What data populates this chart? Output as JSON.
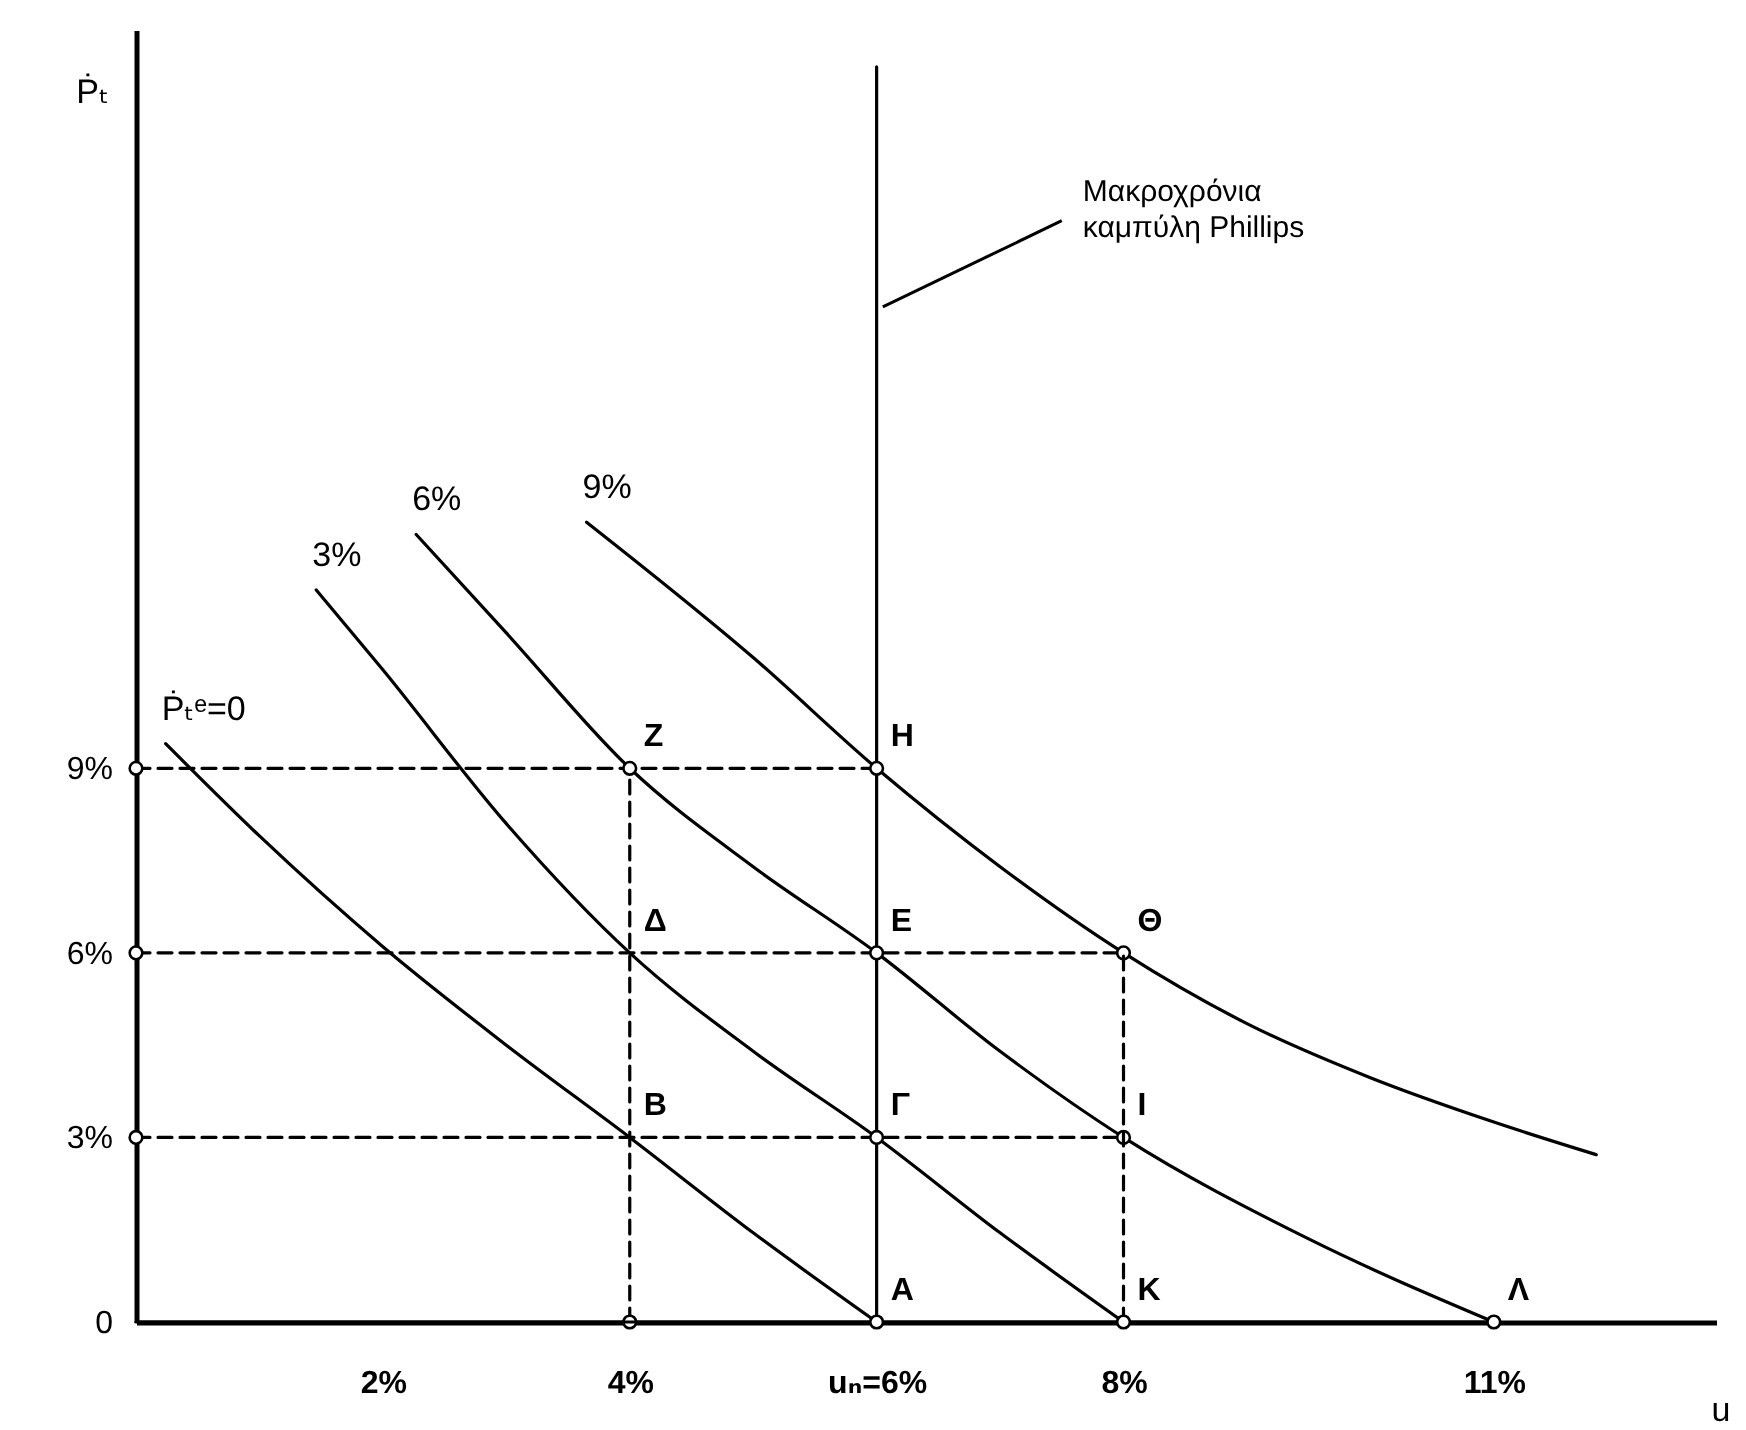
{
  "chart_data": {
    "type": "line",
    "xlabel": "u",
    "ylabel": "Ṗₜ",
    "xlim": [
      0,
      12.8
    ],
    "ylim": [
      0,
      21
    ],
    "xticks": [
      {
        "value": 2,
        "label": "2%"
      },
      {
        "value": 4,
        "label": "4%"
      },
      {
        "value": 6,
        "label": "uₙ=6%"
      },
      {
        "value": 8,
        "label": "8%"
      },
      {
        "value": 11,
        "label": "11%"
      }
    ],
    "yticks": [
      {
        "value": 0,
        "label": "0"
      },
      {
        "value": 3,
        "label": "3%"
      },
      {
        "value": 6,
        "label": "6%"
      },
      {
        "value": 9,
        "label": "9%"
      }
    ],
    "grid": false,
    "series": [
      {
        "name": "Ṗₜᵉ=0",
        "color": "#000000",
        "x": [
          0.24,
          1,
          2,
          3,
          4,
          5,
          6
        ],
        "values": [
          9.4,
          7.9,
          6.1,
          4.5,
          3,
          1.45,
          0
        ],
        "line_style": "solid",
        "marker": "none"
      },
      {
        "name": "3%",
        "color": "#000000",
        "x": [
          1.46,
          2,
          3,
          4,
          5,
          6,
          7,
          8
        ],
        "values": [
          11.9,
          10.6,
          8.1,
          6,
          4.4,
          3,
          1.45,
          0
        ],
        "line_style": "solid",
        "marker": "none"
      },
      {
        "name": "6%",
        "color": "#000000",
        "x": [
          2.27,
          3,
          4,
          5,
          6,
          7,
          8,
          9.5,
          11
        ],
        "values": [
          12.8,
          11.2,
          9,
          7.4,
          6,
          4.4,
          3,
          1.35,
          0
        ],
        "line_style": "solid",
        "marker": "none"
      },
      {
        "name": "9%",
        "color": "#000000",
        "x": [
          3.65,
          5,
          6,
          7,
          8,
          9,
          10,
          11,
          11.83
        ],
        "values": [
          13,
          10.8,
          9,
          7.4,
          6,
          4.85,
          3.97,
          3.25,
          2.72
        ],
        "line_style": "solid",
        "marker": "none"
      },
      {
        "color": "#000000",
        "x": [
          6,
          6
        ],
        "values": [
          0,
          20.4
        ],
        "line_style": "solid",
        "marker": "none"
      },
      {
        "color": "#000000",
        "x": [
          0,
          6
        ],
        "values": [
          9,
          9
        ],
        "line_style": "dashed",
        "marker": "circle"
      },
      {
        "color": "#000000",
        "x": [
          0,
          8
        ],
        "values": [
          6,
          6
        ],
        "line_style": "dashed",
        "marker": "circle"
      },
      {
        "color": "#000000",
        "x": [
          0,
          8
        ],
        "values": [
          3,
          3
        ],
        "line_style": "dashed",
        "marker": "circle"
      },
      {
        "color": "#000000",
        "x": [
          4,
          4
        ],
        "values": [
          0,
          9
        ],
        "line_style": "dashed",
        "marker": "circle"
      },
      {
        "color": "#000000",
        "x": [
          8,
          8
        ],
        "values": [
          0,
          6
        ],
        "line_style": "dashed",
        "marker": "none"
      },
      {
        "color": "#000000",
        "x": [
          0,
          11
        ],
        "values": [
          0,
          0
        ],
        "line_style": "solid",
        "marker": "none"
      },
      {
        "type": "scatter",
        "color": "#000000",
        "x": [
          6,
          6,
          6,
          8,
          11
        ],
        "values": [
          0,
          3,
          6,
          0,
          0
        ],
        "marker": "circle"
      }
    ],
    "annotations": [
      {
        "text": "Μακροχρόνια\nκαμπύλη Phillips",
        "x": 6.05,
        "y": 16.5
      },
      {
        "text": "Z",
        "x": 4,
        "y": 9
      },
      {
        "text": "H",
        "x": 6,
        "y": 9
      },
      {
        "text": "Δ",
        "x": 4,
        "y": 6
      },
      {
        "text": "E",
        "x": 6,
        "y": 6
      },
      {
        "text": "Θ",
        "x": 8,
        "y": 6
      },
      {
        "text": "B",
        "x": 4,
        "y": 3
      },
      {
        "text": "Γ",
        "x": 6,
        "y": 3
      },
      {
        "text": "I",
        "x": 8,
        "y": 3
      },
      {
        "text": "A",
        "x": 6,
        "y": 0
      },
      {
        "text": "K",
        "x": 8,
        "y": 0
      },
      {
        "text": "Λ",
        "x": 11,
        "y": 0
      }
    ]
  }
}
